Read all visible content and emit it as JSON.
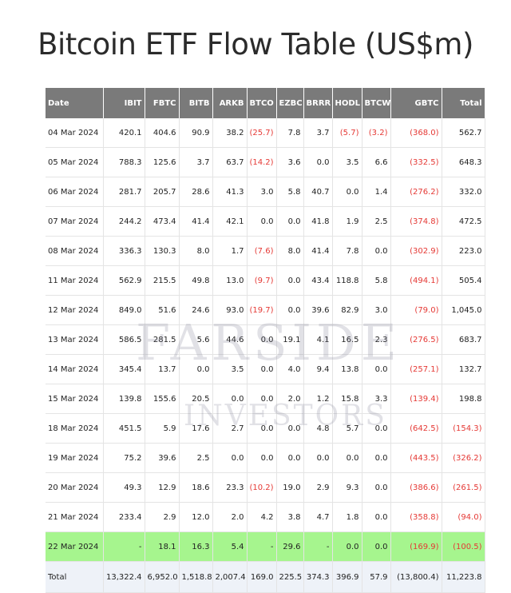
{
  "page": {
    "title": "Bitcoin ETF Flow Table (US$m)"
  },
  "watermark": {
    "line1": "FARSIDE",
    "line2": "INVESTORS"
  },
  "table": {
    "columns": [
      "Date",
      "IBIT",
      "FBTC",
      "BITB",
      "ARKB",
      "BTCO",
      "EZBC",
      "BRRR",
      "HODL",
      "BTCW",
      "GBTC",
      "Total"
    ],
    "rows": [
      {
        "cells": [
          "04 Mar 2024",
          "420.1",
          "404.6",
          "90.9",
          "38.2",
          "(25.7)",
          "7.8",
          "3.7",
          "(5.7)",
          "(3.2)",
          "(368.0)",
          "562.7"
        ]
      },
      {
        "cells": [
          "05 Mar 2024",
          "788.3",
          "125.6",
          "3.7",
          "63.7",
          "(14.2)",
          "3.6",
          "0.0",
          "3.5",
          "6.6",
          "(332.5)",
          "648.3"
        ]
      },
      {
        "cells": [
          "06 Mar 2024",
          "281.7",
          "205.7",
          "28.6",
          "41.3",
          "3.0",
          "5.8",
          "40.7",
          "0.0",
          "1.4",
          "(276.2)",
          "332.0"
        ]
      },
      {
        "cells": [
          "07 Mar 2024",
          "244.2",
          "473.4",
          "41.4",
          "42.1",
          "0.0",
          "0.0",
          "41.8",
          "1.9",
          "2.5",
          "(374.8)",
          "472.5"
        ]
      },
      {
        "cells": [
          "08 Mar 2024",
          "336.3",
          "130.3",
          "8.0",
          "1.7",
          "(7.6)",
          "8.0",
          "41.4",
          "7.8",
          "0.0",
          "(302.9)",
          "223.0"
        ]
      },
      {
        "cells": [
          "11 Mar 2024",
          "562.9",
          "215.5",
          "49.8",
          "13.0",
          "(9.7)",
          "0.0",
          "43.4",
          "118.8",
          "5.8",
          "(494.1)",
          "505.4"
        ]
      },
      {
        "cells": [
          "12 Mar 2024",
          "849.0",
          "51.6",
          "24.6",
          "93.0",
          "(19.7)",
          "0.0",
          "39.6",
          "82.9",
          "3.0",
          "(79.0)",
          "1,045.0"
        ]
      },
      {
        "cells": [
          "13 Mar 2024",
          "586.5",
          "281.5",
          "5.6",
          "44.6",
          "0.0",
          "19.1",
          "4.1",
          "16.5",
          "2.3",
          "(276.5)",
          "683.7"
        ]
      },
      {
        "cells": [
          "14 Mar 2024",
          "345.4",
          "13.7",
          "0.0",
          "3.5",
          "0.0",
          "4.0",
          "9.4",
          "13.8",
          "0.0",
          "(257.1)",
          "132.7"
        ]
      },
      {
        "cells": [
          "15 Mar 2024",
          "139.8",
          "155.6",
          "20.5",
          "0.0",
          "0.0",
          "2.0",
          "1.2",
          "15.8",
          "3.3",
          "(139.4)",
          "198.8"
        ]
      },
      {
        "cells": [
          "18 Mar 2024",
          "451.5",
          "5.9",
          "17.6",
          "2.7",
          "0.0",
          "0.0",
          "4.8",
          "5.7",
          "0.0",
          "(642.5)",
          "(154.3)"
        ]
      },
      {
        "cells": [
          "19 Mar 2024",
          "75.2",
          "39.6",
          "2.5",
          "0.0",
          "0.0",
          "0.0",
          "0.0",
          "0.0",
          "0.0",
          "(443.5)",
          "(326.2)"
        ]
      },
      {
        "cells": [
          "20 Mar 2024",
          "49.3",
          "12.9",
          "18.6",
          "23.3",
          "(10.2)",
          "19.0",
          "2.9",
          "9.3",
          "0.0",
          "(386.6)",
          "(261.5)"
        ]
      },
      {
        "cells": [
          "21 Mar 2024",
          "233.4",
          "2.9",
          "12.0",
          "2.0",
          "4.2",
          "3.8",
          "4.7",
          "1.8",
          "0.0",
          "(358.8)",
          "(94.0)"
        ]
      },
      {
        "cells": [
          "22 Mar 2024",
          "-",
          "18.1",
          "16.3",
          "5.4",
          "-",
          "29.6",
          "-",
          "0.0",
          "0.0",
          "(169.9)",
          "(100.5)"
        ],
        "highlight": true
      },
      {
        "cells": [
          "Total",
          "13,322.4",
          "6,952.0",
          "1,518.8",
          "2,007.4",
          "169.0",
          "225.5",
          "374.3",
          "396.9",
          "57.9",
          "(13,800.4)",
          "11,223.8"
        ],
        "total": true
      }
    ]
  },
  "colors": {
    "header_bg": "#7a7a7a",
    "negative": "#e53935",
    "highlight_row": "#a6f58e",
    "total_row": "#eef2f8"
  }
}
